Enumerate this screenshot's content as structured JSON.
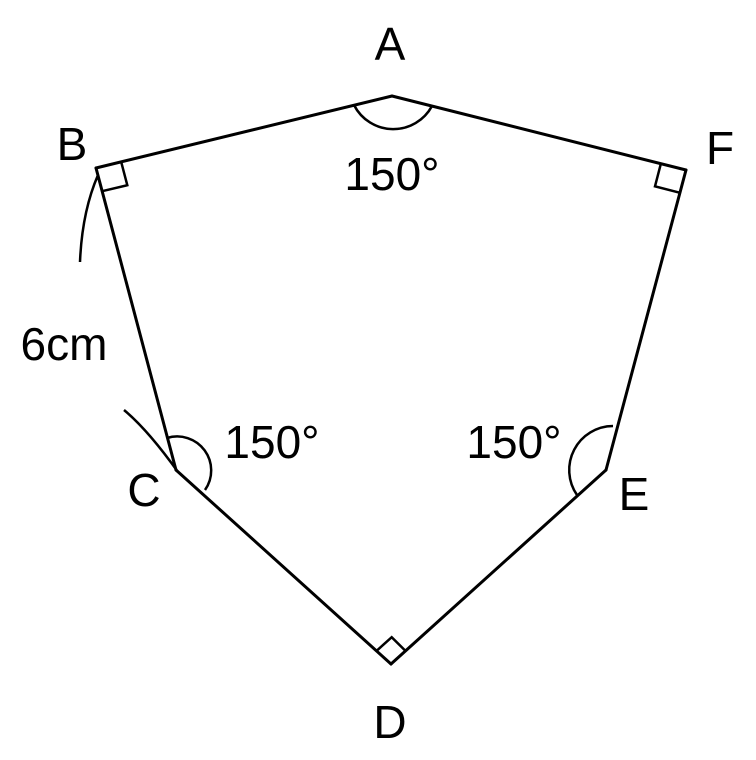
{
  "vertices": {
    "A": "A",
    "B": "B",
    "C": "C",
    "D": "D",
    "E": "E",
    "F": "F"
  },
  "angles": {
    "A": "150°",
    "C": "150°",
    "E": "150°"
  },
  "side_BC": "6cm",
  "colors": {
    "line": "#000000",
    "background": "#ffffff"
  }
}
